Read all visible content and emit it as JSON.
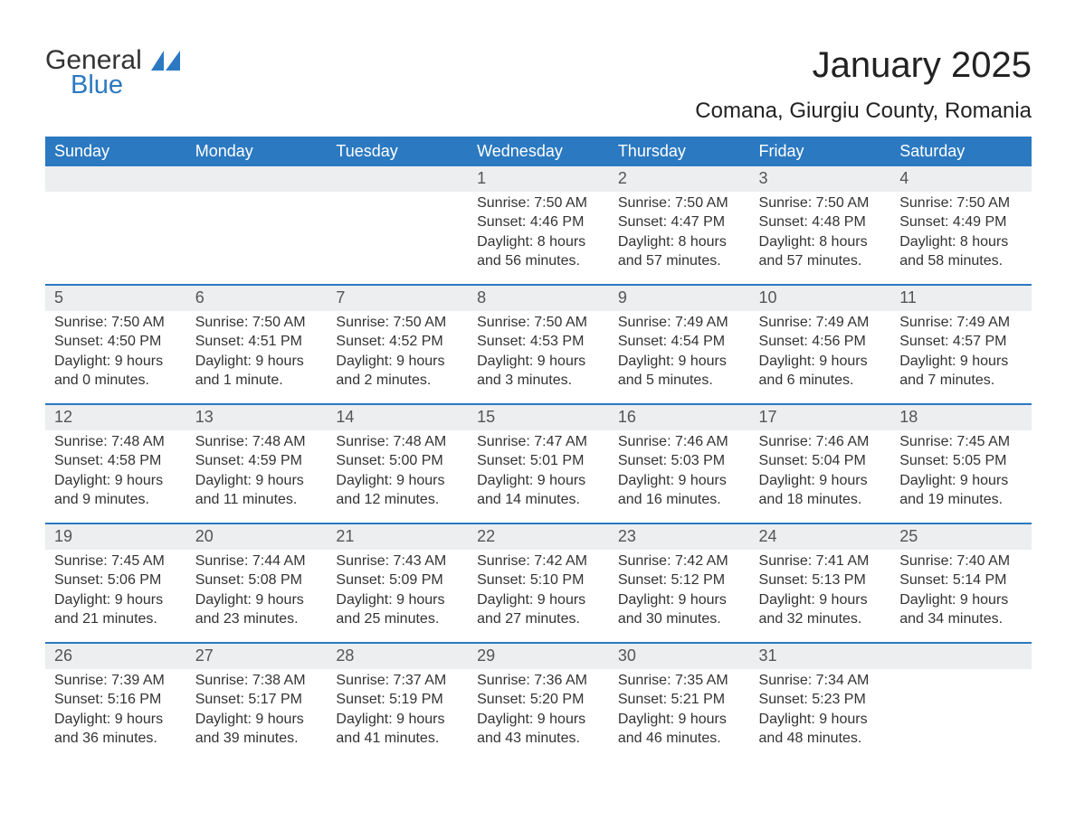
{
  "logo": {
    "word1": "General",
    "word2": "Blue"
  },
  "title": "January 2025",
  "location": "Comana, Giurgiu County, Romania",
  "colors": {
    "header_bg": "#2b79c1",
    "header_text": "#ffffff",
    "date_bar_bg": "#eceeef",
    "date_bar_text": "#555555",
    "border": "#2b79c1",
    "body_text": "#333333",
    "logo_blue": "#2b79c1"
  },
  "day_headers": [
    "Sunday",
    "Monday",
    "Tuesday",
    "Wednesday",
    "Thursday",
    "Friday",
    "Saturday"
  ],
  "weeks": [
    [
      {
        "date": "",
        "sunrise": "",
        "sunset": "",
        "daylight": ""
      },
      {
        "date": "",
        "sunrise": "",
        "sunset": "",
        "daylight": ""
      },
      {
        "date": "",
        "sunrise": "",
        "sunset": "",
        "daylight": ""
      },
      {
        "date": "1",
        "sunrise": "Sunrise: 7:50 AM",
        "sunset": "Sunset: 4:46 PM",
        "daylight": "Daylight: 8 hours and 56 minutes."
      },
      {
        "date": "2",
        "sunrise": "Sunrise: 7:50 AM",
        "sunset": "Sunset: 4:47 PM",
        "daylight": "Daylight: 8 hours and 57 minutes."
      },
      {
        "date": "3",
        "sunrise": "Sunrise: 7:50 AM",
        "sunset": "Sunset: 4:48 PM",
        "daylight": "Daylight: 8 hours and 57 minutes."
      },
      {
        "date": "4",
        "sunrise": "Sunrise: 7:50 AM",
        "sunset": "Sunset: 4:49 PM",
        "daylight": "Daylight: 8 hours and 58 minutes."
      }
    ],
    [
      {
        "date": "5",
        "sunrise": "Sunrise: 7:50 AM",
        "sunset": "Sunset: 4:50 PM",
        "daylight": "Daylight: 9 hours and 0 minutes."
      },
      {
        "date": "6",
        "sunrise": "Sunrise: 7:50 AM",
        "sunset": "Sunset: 4:51 PM",
        "daylight": "Daylight: 9 hours and 1 minute."
      },
      {
        "date": "7",
        "sunrise": "Sunrise: 7:50 AM",
        "sunset": "Sunset: 4:52 PM",
        "daylight": "Daylight: 9 hours and 2 minutes."
      },
      {
        "date": "8",
        "sunrise": "Sunrise: 7:50 AM",
        "sunset": "Sunset: 4:53 PM",
        "daylight": "Daylight: 9 hours and 3 minutes."
      },
      {
        "date": "9",
        "sunrise": "Sunrise: 7:49 AM",
        "sunset": "Sunset: 4:54 PM",
        "daylight": "Daylight: 9 hours and 5 minutes."
      },
      {
        "date": "10",
        "sunrise": "Sunrise: 7:49 AM",
        "sunset": "Sunset: 4:56 PM",
        "daylight": "Daylight: 9 hours and 6 minutes."
      },
      {
        "date": "11",
        "sunrise": "Sunrise: 7:49 AM",
        "sunset": "Sunset: 4:57 PM",
        "daylight": "Daylight: 9 hours and 7 minutes."
      }
    ],
    [
      {
        "date": "12",
        "sunrise": "Sunrise: 7:48 AM",
        "sunset": "Sunset: 4:58 PM",
        "daylight": "Daylight: 9 hours and 9 minutes."
      },
      {
        "date": "13",
        "sunrise": "Sunrise: 7:48 AM",
        "sunset": "Sunset: 4:59 PM",
        "daylight": "Daylight: 9 hours and 11 minutes."
      },
      {
        "date": "14",
        "sunrise": "Sunrise: 7:48 AM",
        "sunset": "Sunset: 5:00 PM",
        "daylight": "Daylight: 9 hours and 12 minutes."
      },
      {
        "date": "15",
        "sunrise": "Sunrise: 7:47 AM",
        "sunset": "Sunset: 5:01 PM",
        "daylight": "Daylight: 9 hours and 14 minutes."
      },
      {
        "date": "16",
        "sunrise": "Sunrise: 7:46 AM",
        "sunset": "Sunset: 5:03 PM",
        "daylight": "Daylight: 9 hours and 16 minutes."
      },
      {
        "date": "17",
        "sunrise": "Sunrise: 7:46 AM",
        "sunset": "Sunset: 5:04 PM",
        "daylight": "Daylight: 9 hours and 18 minutes."
      },
      {
        "date": "18",
        "sunrise": "Sunrise: 7:45 AM",
        "sunset": "Sunset: 5:05 PM",
        "daylight": "Daylight: 9 hours and 19 minutes."
      }
    ],
    [
      {
        "date": "19",
        "sunrise": "Sunrise: 7:45 AM",
        "sunset": "Sunset: 5:06 PM",
        "daylight": "Daylight: 9 hours and 21 minutes."
      },
      {
        "date": "20",
        "sunrise": "Sunrise: 7:44 AM",
        "sunset": "Sunset: 5:08 PM",
        "daylight": "Daylight: 9 hours and 23 minutes."
      },
      {
        "date": "21",
        "sunrise": "Sunrise: 7:43 AM",
        "sunset": "Sunset: 5:09 PM",
        "daylight": "Daylight: 9 hours and 25 minutes."
      },
      {
        "date": "22",
        "sunrise": "Sunrise: 7:42 AM",
        "sunset": "Sunset: 5:10 PM",
        "daylight": "Daylight: 9 hours and 27 minutes."
      },
      {
        "date": "23",
        "sunrise": "Sunrise: 7:42 AM",
        "sunset": "Sunset: 5:12 PM",
        "daylight": "Daylight: 9 hours and 30 minutes."
      },
      {
        "date": "24",
        "sunrise": "Sunrise: 7:41 AM",
        "sunset": "Sunset: 5:13 PM",
        "daylight": "Daylight: 9 hours and 32 minutes."
      },
      {
        "date": "25",
        "sunrise": "Sunrise: 7:40 AM",
        "sunset": "Sunset: 5:14 PM",
        "daylight": "Daylight: 9 hours and 34 minutes."
      }
    ],
    [
      {
        "date": "26",
        "sunrise": "Sunrise: 7:39 AM",
        "sunset": "Sunset: 5:16 PM",
        "daylight": "Daylight: 9 hours and 36 minutes."
      },
      {
        "date": "27",
        "sunrise": "Sunrise: 7:38 AM",
        "sunset": "Sunset: 5:17 PM",
        "daylight": "Daylight: 9 hours and 39 minutes."
      },
      {
        "date": "28",
        "sunrise": "Sunrise: 7:37 AM",
        "sunset": "Sunset: 5:19 PM",
        "daylight": "Daylight: 9 hours and 41 minutes."
      },
      {
        "date": "29",
        "sunrise": "Sunrise: 7:36 AM",
        "sunset": "Sunset: 5:20 PM",
        "daylight": "Daylight: 9 hours and 43 minutes."
      },
      {
        "date": "30",
        "sunrise": "Sunrise: 7:35 AM",
        "sunset": "Sunset: 5:21 PM",
        "daylight": "Daylight: 9 hours and 46 minutes."
      },
      {
        "date": "31",
        "sunrise": "Sunrise: 7:34 AM",
        "sunset": "Sunset: 5:23 PM",
        "daylight": "Daylight: 9 hours and 48 minutes."
      },
      {
        "date": "",
        "sunrise": "",
        "sunset": "",
        "daylight": ""
      }
    ]
  ]
}
